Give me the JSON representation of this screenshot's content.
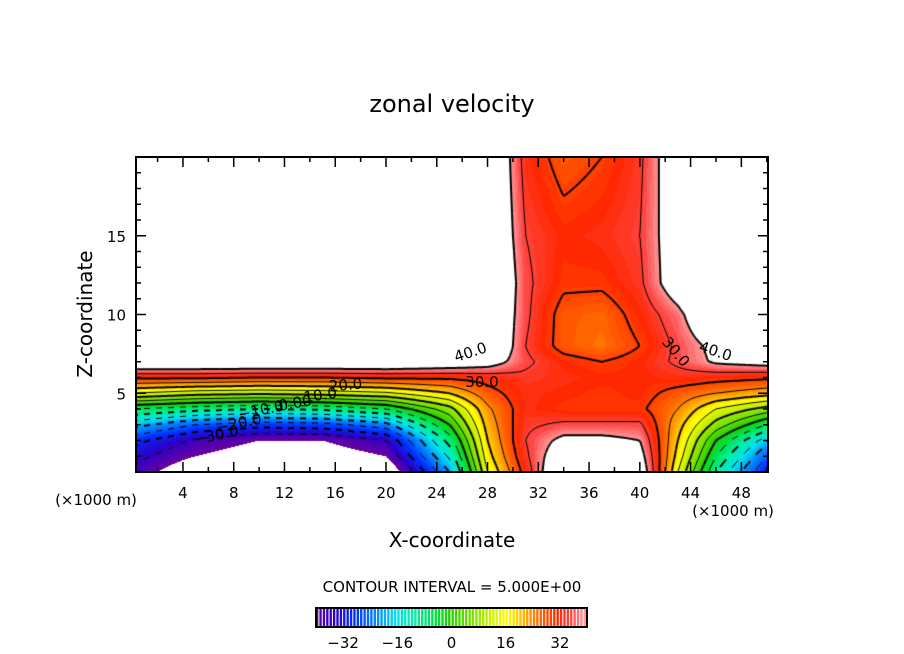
{
  "chart_data": {
    "type": "heatmap",
    "subtype": "filled-contour",
    "title": "zonal velocity",
    "xlabel": "X-coordinate",
    "ylabel": "Z-coordinate",
    "x_unit_left": "(×1000 m)",
    "x_unit_right": "(×1000 m)",
    "xlim": [
      0.3,
      50.1
    ],
    "ylim": [
      0,
      20
    ],
    "xticks": [
      4,
      8,
      12,
      16,
      20,
      24,
      28,
      32,
      36,
      40,
      44,
      48
    ],
    "xtick_labels": [
      "4",
      "8",
      "12",
      "16",
      "20",
      "24",
      "28",
      "32",
      "36",
      "40",
      "44",
      "48"
    ],
    "yticks": [
      5,
      10,
      15
    ],
    "ytick_labels": [
      "5",
      "10",
      "15"
    ],
    "contour_interval_text": "CONTOUR INTERVAL = 5.000E+00",
    "contour_interval": 5,
    "contour_range": [
      -35,
      40
    ],
    "negative_contours": "dashed",
    "colorbar": {
      "range": [
        -40,
        40
      ],
      "ticks": [
        -32,
        -16,
        0,
        16,
        32
      ],
      "tick_labels": [
        "−32",
        "−16",
        "0",
        "16",
        "32"
      ],
      "out_of_range_color": "#ffffff"
    },
    "colormap": [
      [
        -40,
        "#6a00a0"
      ],
      [
        -34,
        "#2a00c8"
      ],
      [
        -28,
        "#0030ff"
      ],
      [
        -21,
        "#0090ff"
      ],
      [
        -16,
        "#00e0f0"
      ],
      [
        -10,
        "#00f0a0"
      ],
      [
        -4,
        "#00e040"
      ],
      [
        0,
        "#20d000"
      ],
      [
        6,
        "#70e000"
      ],
      [
        12,
        "#c8f000"
      ],
      [
        17,
        "#ffff00"
      ],
      [
        22,
        "#ffb400"
      ],
      [
        27,
        "#ff6400"
      ],
      [
        32,
        "#ff2800"
      ],
      [
        36,
        "#ff4848"
      ],
      [
        40,
        "#ff9c9c"
      ]
    ],
    "contour_labels": [
      "40.0",
      "30.0",
      "20.0",
      "10.0",
      "0.00",
      "−10.0",
      "−20.0",
      "−30.0",
      "30.0",
      "40.0"
    ],
    "grid_estimate": {
      "x": [
        0,
        5,
        10,
        15,
        20,
        25,
        28,
        31,
        34,
        37,
        40,
        43,
        46,
        50
      ],
      "z": [
        0,
        1,
        2,
        3,
        4,
        5,
        6,
        7,
        8,
        10,
        12,
        15,
        20
      ],
      "values": [
        [
          -36,
          -46,
          -50,
          -50,
          -46,
          -20,
          15,
          32,
          50,
          50,
          46,
          15,
          -10,
          -30
        ],
        [
          -33,
          -40,
          -44,
          -44,
          -40,
          -14,
          18,
          34,
          46,
          46,
          43,
          18,
          -5,
          -25
        ],
        [
          -28,
          -36,
          -40,
          -40,
          -35,
          -8,
          20,
          35,
          42,
          42,
          40,
          20,
          0,
          -18
        ],
        [
          -18,
          -25,
          -28,
          -27,
          -22,
          0,
          22,
          34,
          36,
          36,
          36,
          22,
          8,
          -5
        ],
        [
          -5,
          -8,
          -10,
          -9,
          -5,
          8,
          24,
          33,
          31,
          31,
          31,
          25,
          15,
          8
        ],
        [
          15,
          12,
          11,
          12,
          14,
          20,
          28,
          33,
          32,
          31,
          32,
          28,
          25,
          22
        ],
        [
          31,
          31,
          30,
          30,
          31,
          31,
          32,
          34,
          33,
          32,
          32,
          33,
          32,
          31
        ],
        [
          48,
          48,
          48,
          48,
          48,
          46,
          44,
          36,
          32,
          30,
          32,
          36,
          41,
          43
        ],
        [
          60,
          60,
          60,
          60,
          60,
          58,
          50,
          35,
          28,
          26,
          30,
          36,
          42,
          50
        ],
        [
          60,
          60,
          60,
          60,
          60,
          60,
          50,
          36,
          28,
          27,
          32,
          38,
          50,
          60
        ],
        [
          60,
          60,
          60,
          60,
          60,
          60,
          52,
          36,
          31,
          31,
          34,
          45,
          60,
          60
        ],
        [
          60,
          60,
          60,
          60,
          60,
          60,
          50,
          35,
          32,
          33,
          35,
          45,
          60,
          60
        ],
        [
          60,
          60,
          60,
          60,
          60,
          60,
          50,
          33,
          28,
          30,
          34,
          46,
          60,
          60
        ]
      ]
    }
  }
}
